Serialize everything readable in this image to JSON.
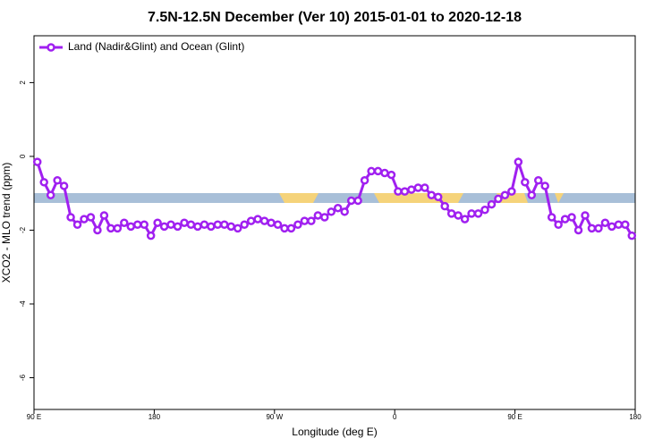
{
  "chart_data": {
    "type": "line",
    "title": "7.5N-12.5N December (Ver 10)   2015-01-01 to 2020-12-18",
    "xlabel": "Longitude (deg E)",
    "ylabel": "XCO2 - MLO trend (ppm)",
    "xlim": [
      90,
      540
    ],
    "ylim": [
      -6.86,
      3.27
    ],
    "xticks": [
      {
        "value": 90,
        "label": "90 E"
      },
      180,
      {
        "value": 270,
        "label": "90 W"
      },
      {
        "value": 360,
        "label": "0"
      },
      {
        "value": 450,
        "label": "90 E"
      },
      {
        "value": 540,
        "label": "180"
      }
    ],
    "yticks": [
      -6,
      -4,
      -2,
      0,
      2
    ],
    "legend": "top-left",
    "x": [
      92.5,
      97.5,
      102.5,
      107.5,
      112.5,
      117.5,
      122.5,
      127.5,
      132.5,
      137.5,
      142.5,
      147.5,
      152.5,
      157.5,
      162.5,
      167.5,
      172.5,
      177.5,
      182.5,
      187.5,
      192.5,
      197.5,
      202.5,
      207.5,
      212.5,
      217.5,
      222.5,
      227.5,
      232.5,
      237.5,
      242.5,
      247.5,
      252.5,
      257.5,
      262.5,
      267.5,
      272.5,
      277.5,
      282.5,
      287.5,
      292.5,
      297.5,
      302.5,
      307.5,
      312.5,
      317.5,
      322.5,
      327.5,
      332.5,
      337.5,
      342.5,
      347.5,
      352.5,
      357.5,
      362.5,
      367.5,
      372.5,
      377.5,
      382.5,
      387.5,
      392.5,
      397.5,
      402.5,
      407.5,
      412.5,
      417.5,
      422.5,
      427.5,
      432.5,
      437.5,
      442.5,
      447.5,
      452.5,
      457.5,
      462.5,
      467.5,
      472.5,
      477.5,
      482.5,
      487.5,
      492.5,
      497.5,
      502.5,
      507.5,
      512.5,
      517.5,
      522.5,
      527.5,
      532.5,
      537.5
    ],
    "series": [
      {
        "name": "Land (Nadir&Glint) and Ocean (Glint)",
        "color": "#a020f0",
        "values": [
          -0.15,
          -0.7,
          -1.05,
          -0.65,
          -0.8,
          -1.65,
          -1.85,
          -1.7,
          -1.65,
          -2.0,
          -1.6,
          -1.95,
          -1.95,
          -1.8,
          -1.9,
          -1.85,
          -1.85,
          -2.15,
          -1.8,
          -1.9,
          -1.85,
          -1.9,
          -1.8,
          -1.85,
          -1.9,
          -1.85,
          -1.9,
          -1.85,
          -1.85,
          -1.9,
          -1.95,
          -1.85,
          -1.75,
          -1.7,
          -1.75,
          -1.8,
          -1.85,
          -1.95,
          -1.95,
          -1.85,
          -1.75,
          -1.75,
          -1.6,
          -1.65,
          -1.5,
          -1.4,
          -1.5,
          -1.2,
          -1.2,
          -0.65,
          -0.4,
          -0.4,
          -0.45,
          -0.5,
          -0.95,
          -0.95,
          -0.9,
          -0.85,
          -0.85,
          -1.05,
          -1.1,
          -1.35,
          -1.55,
          -1.6,
          -1.7,
          -1.55,
          -1.55,
          -1.45,
          -1.3,
          -1.15,
          -1.05,
          -0.95,
          -0.15,
          -0.7,
          -1.05,
          -0.65,
          -0.8,
          -1.65,
          -1.85,
          -1.7,
          -1.65,
          -2.0,
          -1.6,
          -1.95,
          -1.95,
          -1.8,
          -1.9,
          -1.85,
          -1.85,
          -2.15
        ]
      }
    ]
  }
}
